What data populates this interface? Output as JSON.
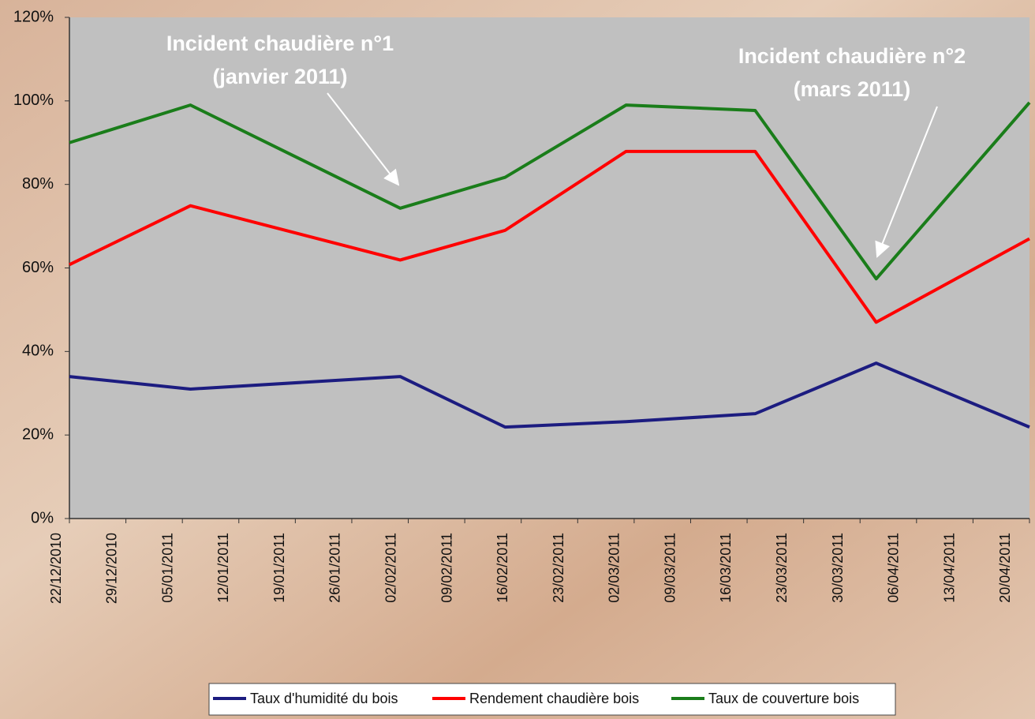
{
  "chart_data": {
    "type": "line",
    "annotations": [
      {
        "text": [
          "Incident chaudière n°1",
          "(janvier 2011)"
        ]
      },
      {
        "text": [
          "Incident chaudière n°2",
          "(mars 2011)"
        ]
      }
    ],
    "x": [
      "22/12/2010",
      "06/01/2011",
      "01/02/2011",
      "14/02/2011",
      "01/03/2011",
      "17/03/2011",
      "01/04/2011",
      "20/04/2011"
    ],
    "xlim": [
      "22/12/2010",
      "20/04/2011"
    ],
    "xticks": [
      "22/12/2010",
      "29/12/2010",
      "05/01/2011",
      "12/01/2011",
      "19/01/2011",
      "26/01/2011",
      "02/02/2011",
      "09/02/2011",
      "16/02/2011",
      "23/02/2011",
      "02/03/2011",
      "09/03/2011",
      "16/03/2011",
      "23/03/2011",
      "30/03/2011",
      "06/04/2011",
      "13/04/2011",
      "20/04/2011"
    ],
    "ylim": [
      0,
      120
    ],
    "yticks": [
      {
        "value": 0,
        "label": "0%"
      },
      {
        "value": 20,
        "label": "20%"
      },
      {
        "value": 40,
        "label": "40%"
      },
      {
        "value": 60,
        "label": "60%"
      },
      {
        "value": 80,
        "label": "80%"
      },
      {
        "value": 100,
        "label": "100%"
      },
      {
        "value": 120,
        "label": "120%"
      }
    ],
    "series": [
      {
        "name": "Taux d'humidité du bois",
        "color": "#1c1c80",
        "values": [
          34,
          31,
          34,
          21.9,
          23.2,
          25.1,
          37.2,
          21.9
        ]
      },
      {
        "name": "Rendement chaudière bois",
        "color": "#ff0000",
        "values": [
          60.8,
          74.9,
          61.9,
          69,
          87.9,
          87.9,
          47,
          67
        ]
      },
      {
        "name": "Taux de couverture bois",
        "color": "#1a7d1a",
        "values": [
          90,
          99,
          74.3,
          81.7,
          99,
          97.7,
          57.4,
          99.6
        ]
      }
    ],
    "legend": "bottom"
  }
}
